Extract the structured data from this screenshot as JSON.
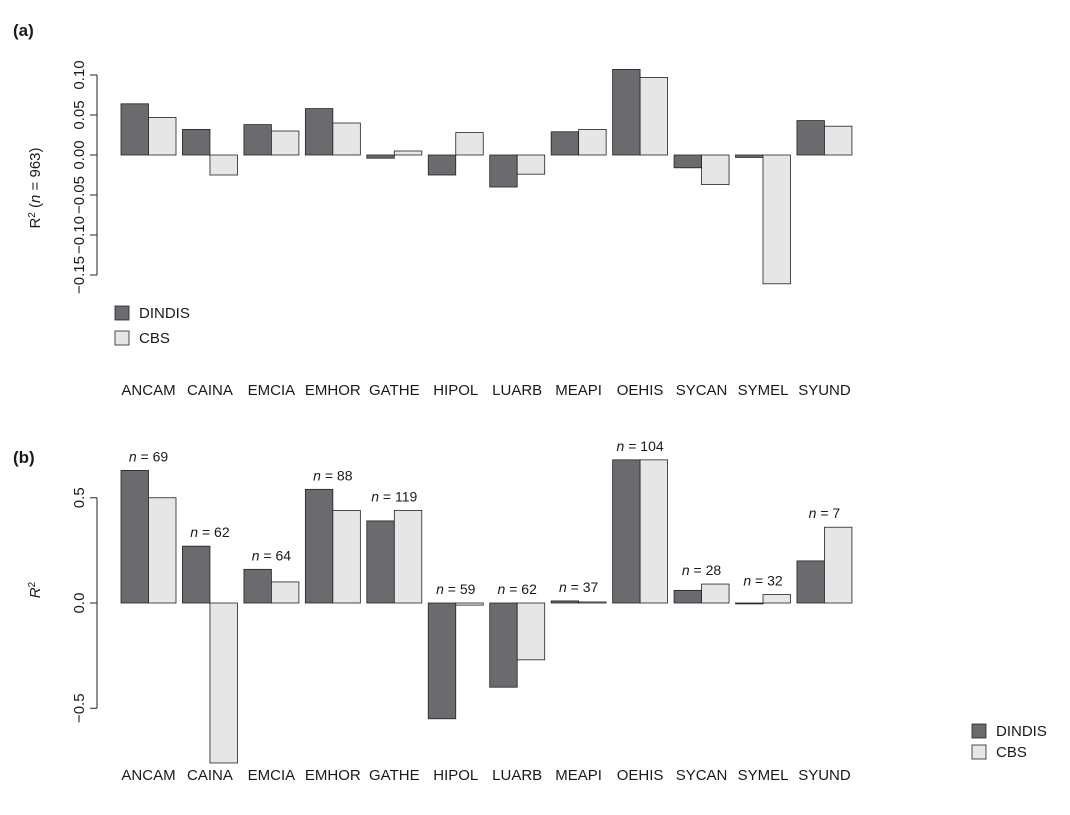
{
  "figure": {
    "colors": {
      "dindis": "#6b6b6f",
      "cbs": "#e6e6e6",
      "stroke": "#222222"
    }
  },
  "chart_data": [
    {
      "type": "bar",
      "panel_label": "(a)",
      "ylabel": "R² (n = 963)",
      "ylabel_parts": {
        "pre": "R",
        "sup": "2",
        "open": " (",
        "n": "n",
        "rest": " = 963)"
      },
      "ylim": [
        -0.17,
        0.107
      ],
      "yticks": [
        -0.15,
        -0.1,
        -0.05,
        0.0,
        0.05,
        0.1
      ],
      "ytick_labels": [
        "−0.15",
        "−0.10",
        "−0.05",
        "0.00",
        "0.05",
        "0.10"
      ],
      "categories": [
        "ANCAM",
        "CAINA",
        "EMCIA",
        "EMHOR",
        "GATHE",
        "HIPOL",
        "LUARB",
        "MEAPI",
        "OEHIS",
        "SYCAN",
        "SYMEL",
        "SYUND"
      ],
      "series": [
        {
          "name": "DINDIS",
          "values": [
            0.064,
            0.032,
            0.038,
            0.058,
            -0.004,
            -0.025,
            -0.04,
            0.029,
            0.107,
            -0.016,
            -0.003,
            0.043
          ]
        },
        {
          "name": "CBS",
          "values": [
            0.047,
            -0.025,
            0.03,
            0.04,
            0.005,
            0.028,
            -0.024,
            0.032,
            0.097,
            -0.037,
            -0.161,
            0.036
          ]
        }
      ],
      "legend_position": "bottom-left"
    },
    {
      "type": "bar",
      "panel_label": "(b)",
      "ylabel": "R²",
      "ylabel_parts": {
        "pre": "R",
        "sup": "2"
      },
      "ylim": [
        -0.78,
        0.71
      ],
      "yticks": [
        -0.5,
        0.0,
        0.5
      ],
      "ytick_labels": [
        "−0.5",
        "0.0",
        "0.5"
      ],
      "categories": [
        "ANCAM",
        "CAINA",
        "EMCIA",
        "EMHOR",
        "GATHE",
        "HIPOL",
        "LUARB",
        "MEAPI",
        "OEHIS",
        "SYCAN",
        "SYMEL",
        "SYUND"
      ],
      "series": [
        {
          "name": "DINDIS",
          "values": [
            0.63,
            0.27,
            0.16,
            0.54,
            0.39,
            -0.55,
            -0.4,
            0.01,
            0.68,
            0.06,
            0.0,
            0.2
          ]
        },
        {
          "name": "CBS",
          "values": [
            0.5,
            -0.76,
            0.1,
            0.44,
            0.44,
            -0.01,
            -0.27,
            0.005,
            0.68,
            0.09,
            0.04,
            0.36
          ]
        }
      ],
      "n_labels": [
        {
          "italic": "n",
          "rest": " = 69"
        },
        {
          "italic": "n",
          "rest": " = 62"
        },
        {
          "italic": "n",
          "rest": " = 64"
        },
        {
          "italic": "n",
          "rest": " = 88"
        },
        {
          "italic": "n",
          "rest": " = 119"
        },
        {
          "italic": "n",
          "rest": " = 59"
        },
        {
          "italic": "n",
          "rest": " = 62"
        },
        {
          "italic": "n",
          "rest": " = 37"
        },
        {
          "italic": "n",
          "rest": " = 104"
        },
        {
          "italic": "n",
          "rest": " = 28"
        },
        {
          "italic": "n",
          "rest": " = 32"
        },
        {
          "italic": "n",
          "rest": " = 7"
        }
      ],
      "legend_position": "bottom-right"
    }
  ]
}
